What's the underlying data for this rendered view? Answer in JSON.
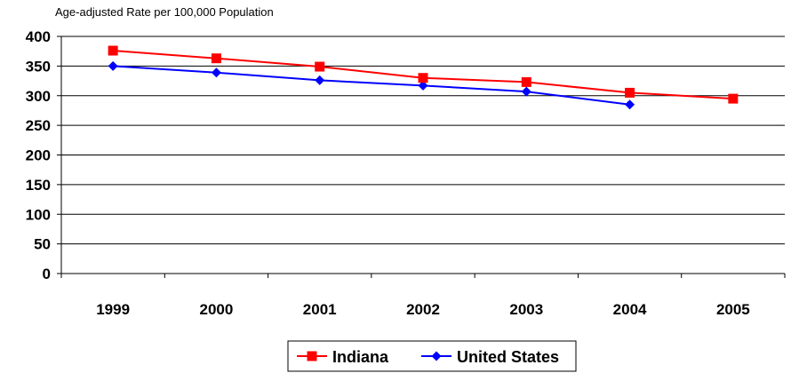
{
  "chart_data": {
    "type": "line",
    "title": "",
    "xlabel": "",
    "ylabel": "Age-adjusted Rate per 100,000 Population",
    "categories": [
      "1999",
      "2000",
      "2001",
      "2002",
      "2003",
      "2004",
      "2005"
    ],
    "ylim": [
      0,
      400
    ],
    "yticks": [
      "0",
      "50",
      "100",
      "150",
      "200",
      "250",
      "300",
      "350",
      "400"
    ],
    "grid": true,
    "legend_position": "bottom",
    "series": [
      {
        "name": "Indiana",
        "values": [
          376,
          363,
          349,
          330,
          323,
          305,
          295
        ],
        "color": "#ff0000",
        "marker": "square"
      },
      {
        "name": "United States",
        "values": [
          350,
          339,
          326,
          317,
          307,
          285,
          null
        ],
        "color": "#0000ff",
        "marker": "diamond"
      }
    ]
  }
}
